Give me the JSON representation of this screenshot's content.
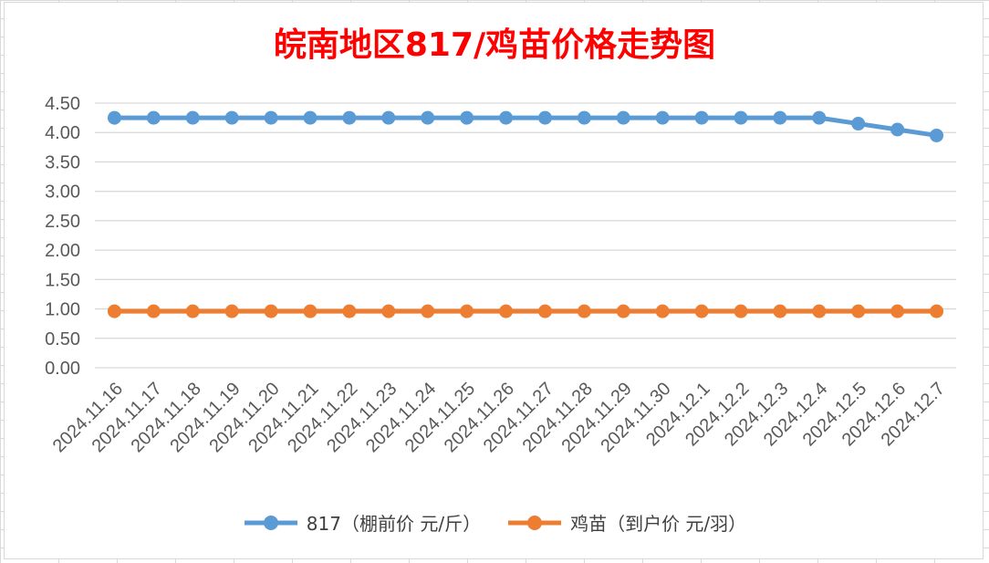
{
  "chart_data": {
    "type": "line",
    "title": "皖南地区817/鸡苗价格走势图",
    "title_color": "#ff0000",
    "xlabel": "",
    "ylabel": "",
    "ylim": [
      0,
      4.5
    ],
    "yticks": [
      "0.00",
      "0.50",
      "1.00",
      "1.50",
      "2.00",
      "2.50",
      "3.00",
      "3.50",
      "4.00",
      "4.50"
    ],
    "grid": true,
    "legend_position": "bottom",
    "categories": [
      "2024.11.16",
      "2024.11.17",
      "2024.11.18",
      "2024.11.19",
      "2024.11.20",
      "2024.11.21",
      "2024.11.22",
      "2024.11.23",
      "2024.11.24",
      "2024.11.25",
      "2024.11.26",
      "2024.11.27",
      "2024.11.28",
      "2024.11.29",
      "2024.11.30",
      "2024.12.1",
      "2024.12.2",
      "2024.12.3",
      "2024.12.4",
      "2024.12.5",
      "2024.12.6",
      "2024.12.7"
    ],
    "series": [
      {
        "name": "817（棚前价 元/斤）",
        "color": "#5b9bd5",
        "values": [
          4.25,
          4.25,
          4.25,
          4.25,
          4.25,
          4.25,
          4.25,
          4.25,
          4.25,
          4.25,
          4.25,
          4.25,
          4.25,
          4.25,
          4.25,
          4.25,
          4.25,
          4.25,
          4.25,
          4.15,
          4.05,
          3.95
        ]
      },
      {
        "name": "鸡苗（到户价 元/羽）",
        "color": "#ed7d31",
        "values": [
          0.96,
          0.96,
          0.96,
          0.96,
          0.96,
          0.96,
          0.96,
          0.96,
          0.96,
          0.96,
          0.96,
          0.96,
          0.96,
          0.96,
          0.96,
          0.96,
          0.96,
          0.96,
          0.96,
          0.96,
          0.96,
          0.96
        ]
      }
    ]
  }
}
